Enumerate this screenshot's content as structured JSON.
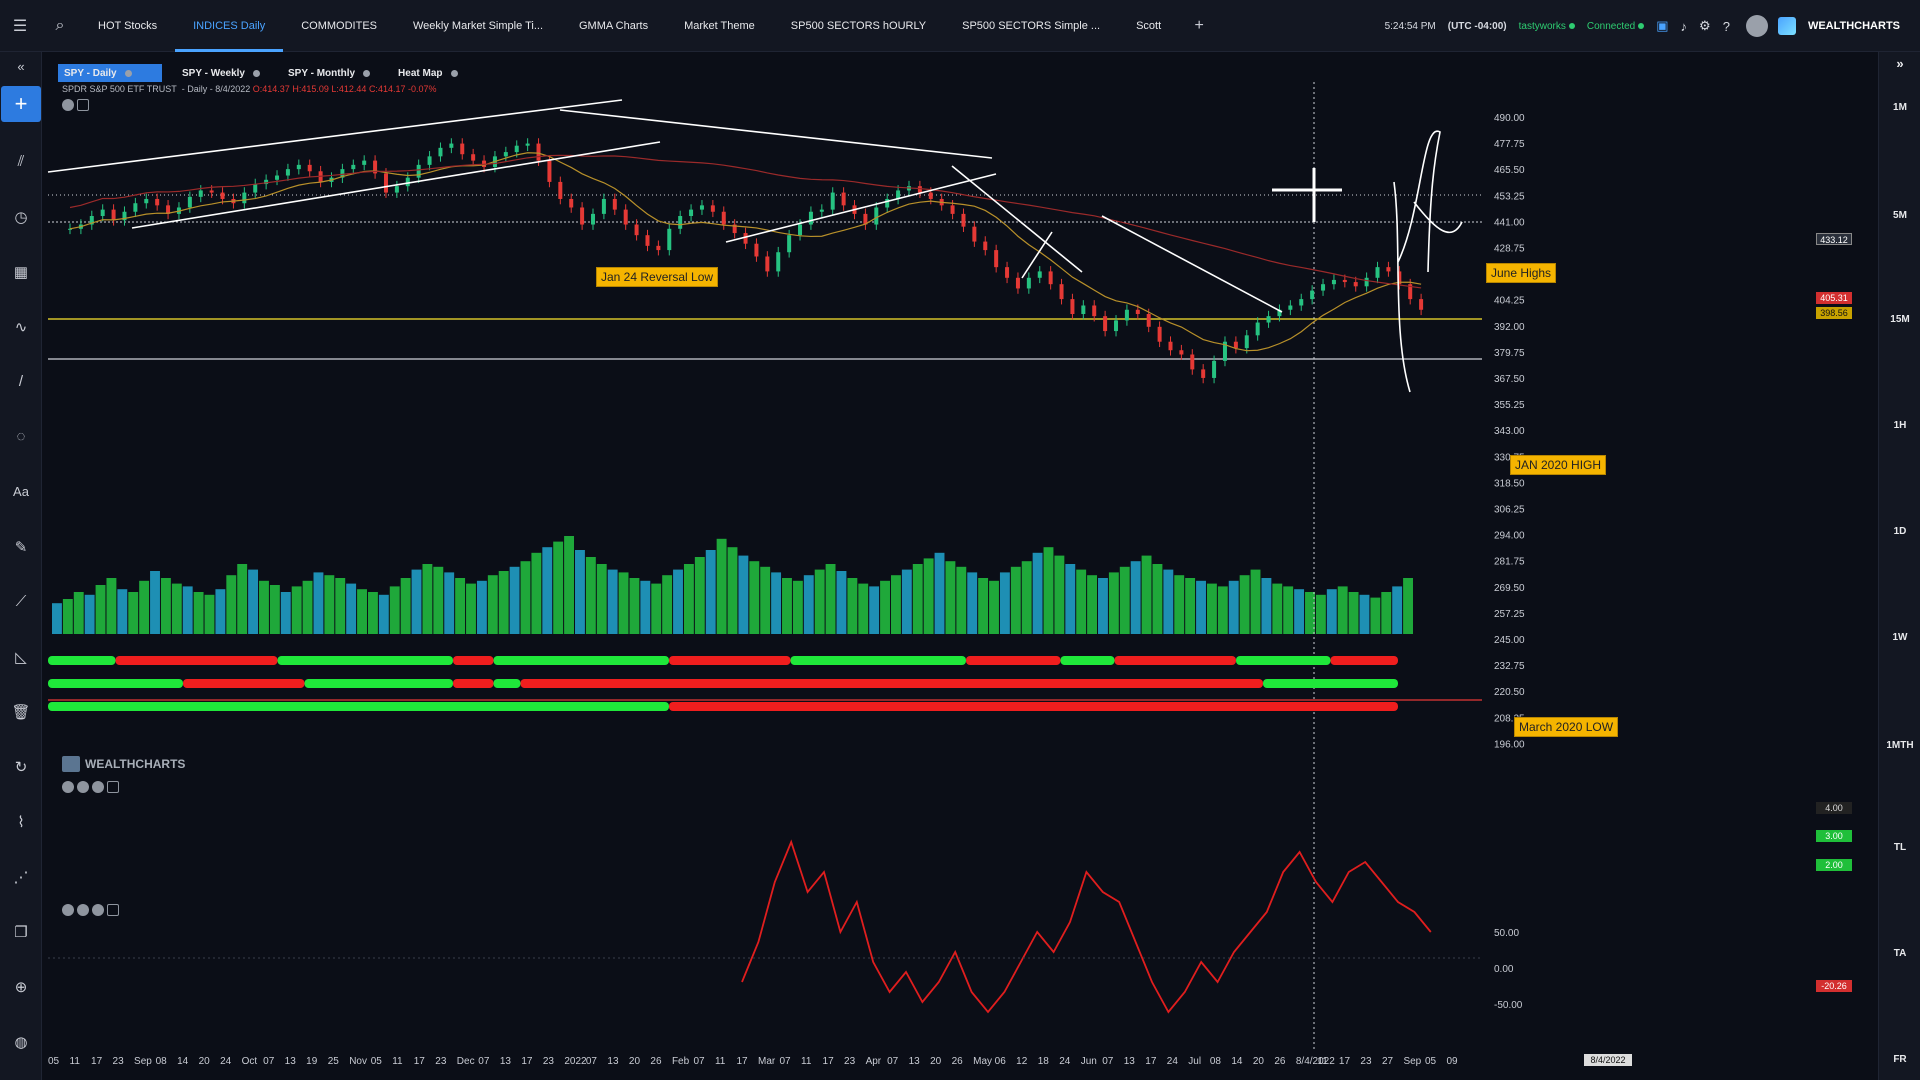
{
  "topbar": {
    "tabs": [
      {
        "label": "HOT Stocks",
        "active": false
      },
      {
        "label": "INDICES Daily",
        "active": true
      },
      {
        "label": "COMMODITES",
        "active": false
      },
      {
        "label": "Weekly Market Simple Ti...",
        "active": false
      },
      {
        "label": "GMMA Charts",
        "active": false
      },
      {
        "label": "Market Theme",
        "active": false
      },
      {
        "label": "SP500 SECTORS hOURLY",
        "active": false
      },
      {
        "label": "SP500 SECTORS Simple ...",
        "active": false
      },
      {
        "label": "Scott",
        "active": false
      }
    ],
    "time": "5:24:54 PM",
    "timezone": "(UTC -04:00)",
    "broker": "tastyworks",
    "status": "Connected",
    "brand": "WEALTHCHARTS"
  },
  "chart_tabs": [
    {
      "label": "SPY - Daily",
      "active": true
    },
    {
      "label": "SPY - Weekly",
      "active": false
    },
    {
      "label": "SPY - Monthly",
      "active": false
    },
    {
      "label": "Heat Map",
      "active": false
    }
  ],
  "symbol": {
    "name": "SPDR S&P 500 ETF TRUST",
    "interval": "- Daily - 8/4/2022",
    "open": "O:414.37",
    "high": "H:415.09",
    "low": "L:412.44",
    "close": "C:414.17",
    "change": "-0.07%"
  },
  "timeframes": [
    "1M",
    "5M",
    "15M",
    "1H",
    "1D",
    "1W",
    "1MTH",
    "TL",
    "TA",
    "FR"
  ],
  "annotations": {
    "jan24": "Jan 24 Reversal Low",
    "june_highs": "June Highs",
    "jan2020": "JAN 2020 HIGH",
    "march2020": "March 2020 LOW"
  },
  "watermark": "WEALTHCHARTS",
  "price_tags": {
    "last": "433.12",
    "red": "405.31",
    "yellow": "398.56",
    "ind1": "4.00",
    "ind2": "3.00",
    "ind3": "2.00",
    "osc": "-20.26"
  },
  "crosshair_date": "8/4/2022",
  "chart_data": {
    "type": "line",
    "title": "",
    "y_axis": {
      "ticks": [
        "490.00",
        "477.75",
        "465.50",
        "453.25",
        "441.00",
        "428.75",
        "416.50",
        "404.25",
        "392.00",
        "379.75",
        "367.50",
        "355.25",
        "343.00",
        "330.75",
        "318.50",
        "306.25",
        "294.00",
        "281.75",
        "269.50",
        "257.25",
        "245.00",
        "232.75",
        "220.50",
        "208.25",
        "196.00"
      ]
    },
    "x_axis": {
      "ticks": [
        "05",
        "11",
        "17",
        "23",
        "Sep",
        "08",
        "14",
        "20",
        "24",
        "Oct",
        "07",
        "13",
        "19",
        "25",
        "Nov",
        "05",
        "11",
        "17",
        "23",
        "Dec",
        "07",
        "13",
        "17",
        "23",
        "2022",
        "07",
        "13",
        "20",
        "26",
        "Feb",
        "07",
        "11",
        "17",
        "Mar",
        "07",
        "11",
        "17",
        "23",
        "Apr",
        "07",
        "13",
        "20",
        "26",
        "May",
        "06",
        "12",
        "18",
        "24",
        "Jun",
        "07",
        "13",
        "17",
        "24",
        "Jul",
        "08",
        "14",
        "20",
        "26",
        "8/4/2022",
        "11",
        "17",
        "23",
        "27",
        "Sep",
        "05",
        "09"
      ]
    },
    "oscillator_ticks": [
      "50.00",
      "0.00",
      "-50.00"
    ],
    "close": [
      438,
      440,
      444,
      447,
      442,
      446,
      450,
      452,
      449,
      445,
      448,
      453,
      456,
      455,
      452,
      450,
      455,
      459,
      461,
      463,
      466,
      468,
      465,
      460,
      462,
      466,
      468,
      470,
      464,
      455,
      458,
      462,
      468,
      472,
      476,
      478,
      473,
      470,
      467,
      472,
      474,
      477,
      478,
      470,
      460,
      452,
      448,
      440,
      445,
      452,
      447,
      440,
      435,
      430,
      428,
      438,
      444,
      447,
      449,
      446,
      440,
      436,
      431,
      425,
      418,
      427,
      435,
      440,
      446,
      447,
      455,
      449,
      445,
      440,
      448,
      452,
      456,
      458,
      455,
      452,
      449,
      445,
      439,
      432,
      428,
      420,
      415,
      410,
      415,
      418,
      412,
      405,
      398,
      402,
      397,
      390,
      395,
      400,
      398,
      392,
      385,
      381,
      379,
      372,
      368,
      376,
      385,
      382,
      388,
      394,
      397,
      400,
      402,
      405,
      409,
      412,
      414,
      413,
      411,
      415,
      420,
      418,
      412,
      405,
      400
    ],
    "volume_pct": [
      22,
      25,
      30,
      28,
      35,
      40,
      32,
      30,
      38,
      45,
      40,
      36,
      34,
      30,
      28,
      32,
      42,
      50,
      46,
      38,
      35,
      30,
      34,
      38,
      44,
      42,
      40,
      36,
      32,
      30,
      28,
      34,
      40,
      46,
      50,
      48,
      44,
      40,
      36,
      38,
      42,
      45,
      48,
      52,
      58,
      62,
      66,
      70,
      60,
      55,
      50,
      46,
      44,
      40,
      38,
      36,
      42,
      46,
      50,
      55,
      60,
      68,
      62,
      56,
      52,
      48,
      44,
      40,
      38,
      42,
      46,
      50,
      45,
      40,
      36,
      34,
      38,
      42,
      46,
      50,
      54,
      58,
      52,
      48,
      44,
      40,
      38,
      44,
      48,
      52,
      58,
      62,
      56,
      50,
      46,
      42,
      40,
      44,
      48,
      52,
      56,
      50,
      46,
      42,
      40,
      38,
      36,
      34,
      38,
      42,
      46,
      40,
      36,
      34,
      32,
      30,
      28,
      32,
      34,
      30,
      28,
      26,
      30,
      34,
      40
    ]
  }
}
